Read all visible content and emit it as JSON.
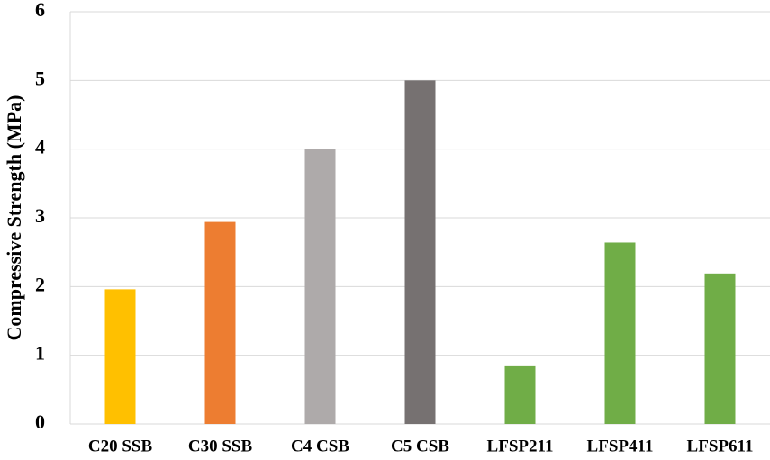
{
  "chart_data": {
    "type": "bar",
    "y_label": "Compressive Strength (MPa)",
    "categories": [
      "C20 SSB",
      "C30 SSB",
      "C4 CSB",
      "C5 CSB",
      "LFSP211",
      "LFSP411",
      "LFSP611"
    ],
    "values": [
      1.96,
      2.94,
      4.0,
      5.0,
      0.84,
      2.64,
      2.19
    ],
    "colors": [
      "#ffc000",
      "#ed7d31",
      "#aeaaaa",
      "#767171",
      "#70ad47",
      "#70ad47",
      "#70ad47"
    ],
    "ylim": [
      0,
      6
    ],
    "yticks": [
      0,
      1,
      2,
      3,
      4,
      5,
      6
    ],
    "grid": true
  }
}
